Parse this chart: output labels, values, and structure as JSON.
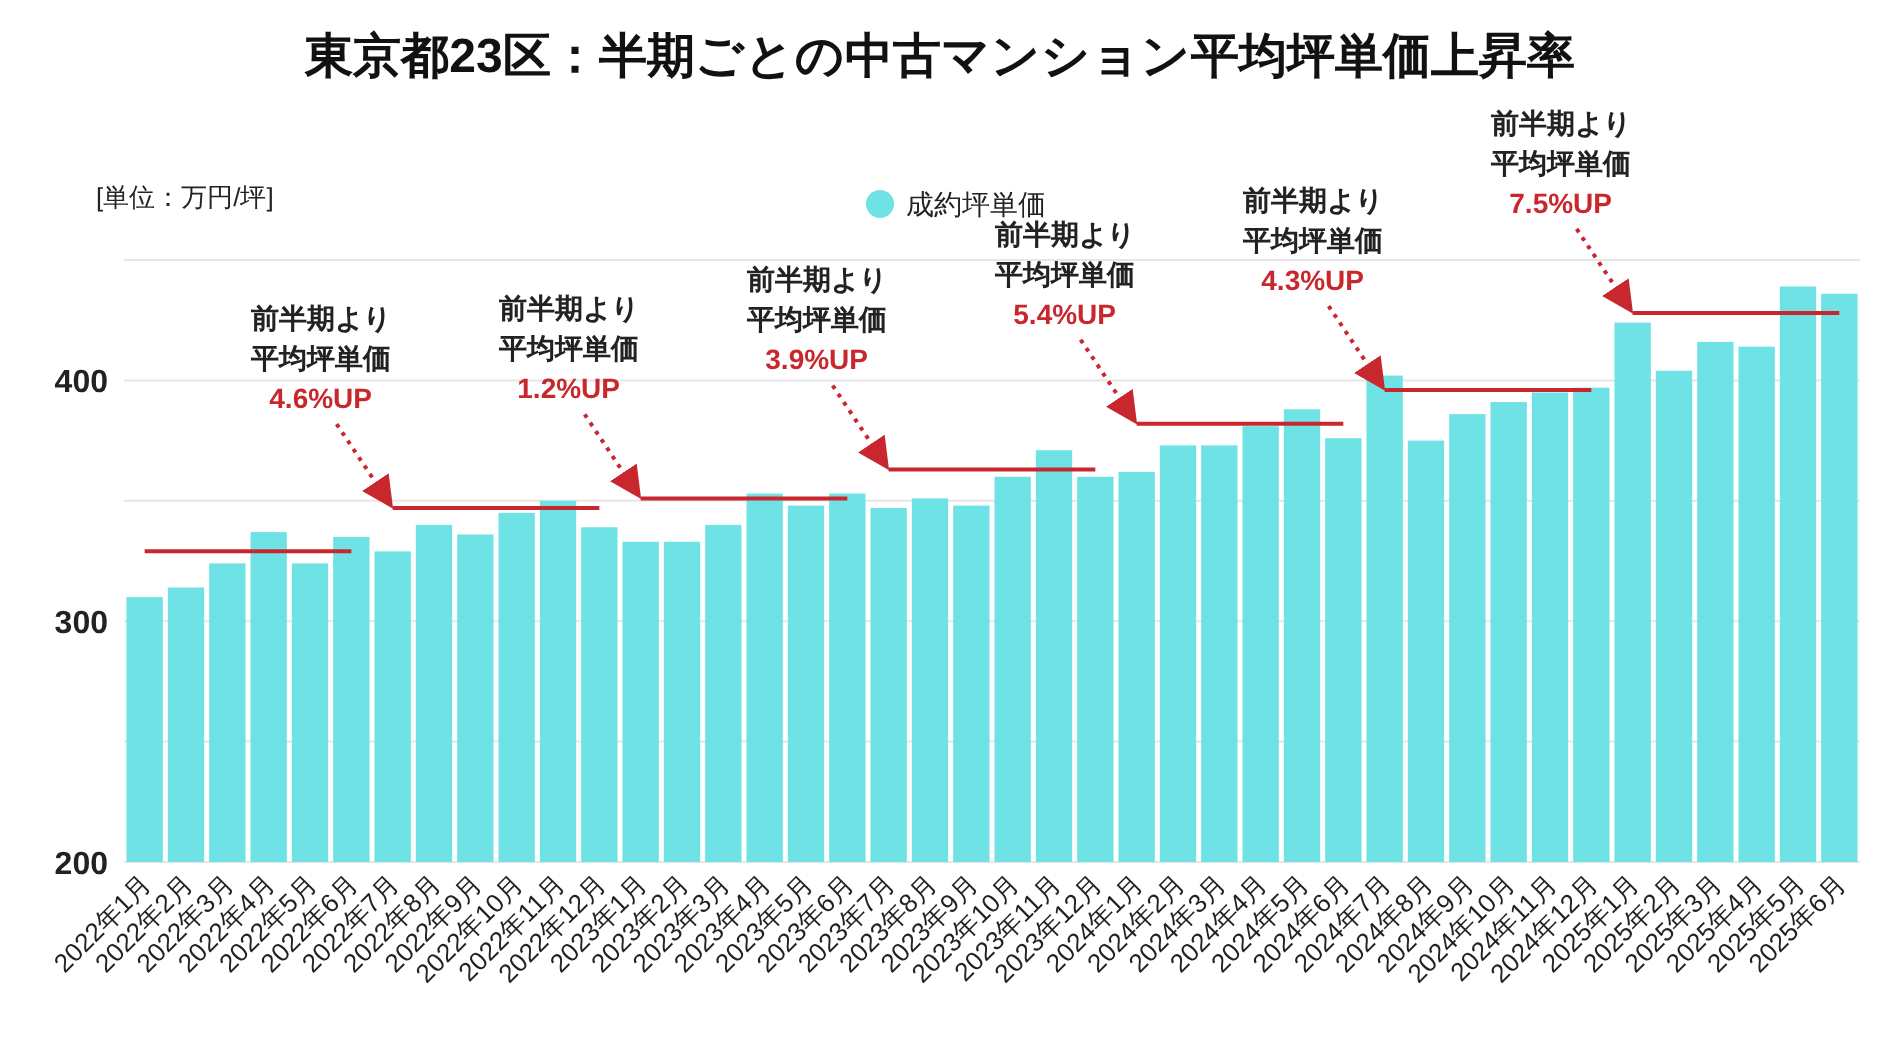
{
  "chart_data": {
    "type": "bar",
    "title": "東京都23区：半期ごとの中古マンション平均坪単価上昇率",
    "categories": [
      "2022年1月",
      "2022年2月",
      "2022年3月",
      "2022年4月",
      "2022年5月",
      "2022年6月",
      "2022年7月",
      "2022年8月",
      "2022年9月",
      "2022年10月",
      "2022年11月",
      "2022年12月",
      "2023年1月",
      "2023年2月",
      "2023年3月",
      "2023年4月",
      "2023年5月",
      "2023年6月",
      "2023年7月",
      "2023年8月",
      "2023年9月",
      "2023年10月",
      "2023年11月",
      "2023年12月",
      "2024年1月",
      "2024年2月",
      "2024年3月",
      "2024年4月",
      "2024年5月",
      "2024年6月",
      "2024年7月",
      "2024年8月",
      "2024年9月",
      "2024年10月",
      "2024年11月",
      "2024年12月",
      "2025年1月",
      "2025年2月",
      "2025年3月",
      "2025年4月",
      "2025年5月",
      "2025年6月"
    ],
    "series": [
      {
        "name": "成約坪単価",
        "color": "#6fe2e6",
        "values": [
          310,
          314,
          324,
          337,
          324,
          335,
          329,
          340,
          336,
          345,
          350,
          339,
          333,
          333,
          340,
          353,
          348,
          353,
          347,
          351,
          348,
          360,
          371,
          360,
          362,
          373,
          373,
          381,
          388,
          376,
          402,
          375,
          386,
          391,
          395,
          397,
          424,
          404,
          416,
          414,
          439,
          436
        ]
      },
      {
        "type": "line",
        "color": "#c8282d",
        "x": [
          "2022年1月",
          "2022年2月",
          "2022年3月",
          "2022年4月",
          "2022年5月",
          "2022年6月"
        ],
        "values": [
          329,
          329,
          329,
          329,
          329,
          329
        ]
      },
      {
        "type": "line",
        "color": "#c8282d",
        "x": [
          "2022年7月",
          "2022年8月",
          "2022年9月",
          "2022年10月",
          "2022年11月",
          "2022年12月"
        ],
        "values": [
          347,
          347,
          347,
          347,
          347,
          347
        ]
      },
      {
        "type": "line",
        "color": "#c8282d",
        "x": [
          "2023年1月",
          "2023年2月",
          "2023年3月",
          "2023年4月",
          "2023年5月",
          "2023年6月"
        ],
        "values": [
          351,
          351,
          351,
          351,
          351,
          351
        ]
      },
      {
        "type": "line",
        "color": "#c8282d",
        "x": [
          "2023年7月",
          "2023年8月",
          "2023年9月",
          "2023年10月",
          "2023年11月",
          "2023年12月"
        ],
        "values": [
          363,
          363,
          363,
          363,
          363,
          363
        ]
      },
      {
        "type": "line",
        "color": "#c8282d",
        "x": [
          "2024年1月",
          "2024年2月",
          "2024年3月",
          "2024年4月",
          "2024年5月",
          "2024年6月"
        ],
        "values": [
          382,
          382,
          382,
          382,
          382,
          382
        ]
      },
      {
        "type": "line",
        "color": "#c8282d",
        "x": [
          "2024年7月",
          "2024年8月",
          "2024年9月",
          "2024年10月",
          "2024年11月",
          "2024年12月"
        ],
        "values": [
          396,
          396,
          396,
          396,
          396,
          396
        ]
      },
      {
        "type": "line",
        "color": "#c8282d",
        "x": [
          "2025年1月",
          "2025年2月",
          "2025年3月",
          "2025年4月",
          "2025年5月",
          "2025年6月"
        ],
        "values": [
          428,
          428,
          428,
          428,
          428,
          428
        ]
      }
    ],
    "ylim": [
      200,
      450
    ],
    "yticks": [
      200,
      {
        "value": 250,
        "label": null
      },
      300,
      {
        "value": 350,
        "label": null
      },
      400,
      {
        "value": 450,
        "label": null
      }
    ],
    "grid": "y",
    "legend": "top",
    "marker": "none",
    "line_style": "solid",
    "annotations": [
      "[単位：万円/坪]",
      {
        "text": "前半期より平均坪単価4.6%UP",
        "x": "2022年7月",
        "y": 347
      },
      {
        "text": "前半期より平均坪単価1.2%UP",
        "x": "2023年1月",
        "y": 351
      },
      {
        "text": "前半期より平均坪単価3.9%UP",
        "x": "2023年7月",
        "y": 363
      },
      {
        "text": "前半期より平均坪単価5.4%UP",
        "x": "2024年1月",
        "y": 382
      },
      {
        "text": "前半期より平均坪単価4.3%UP",
        "x": "2024年7月",
        "y": 396
      },
      {
        "text": "前半期より平均坪単価7.5%UP",
        "x": "2025年1月",
        "y": 428
      }
    ]
  }
}
